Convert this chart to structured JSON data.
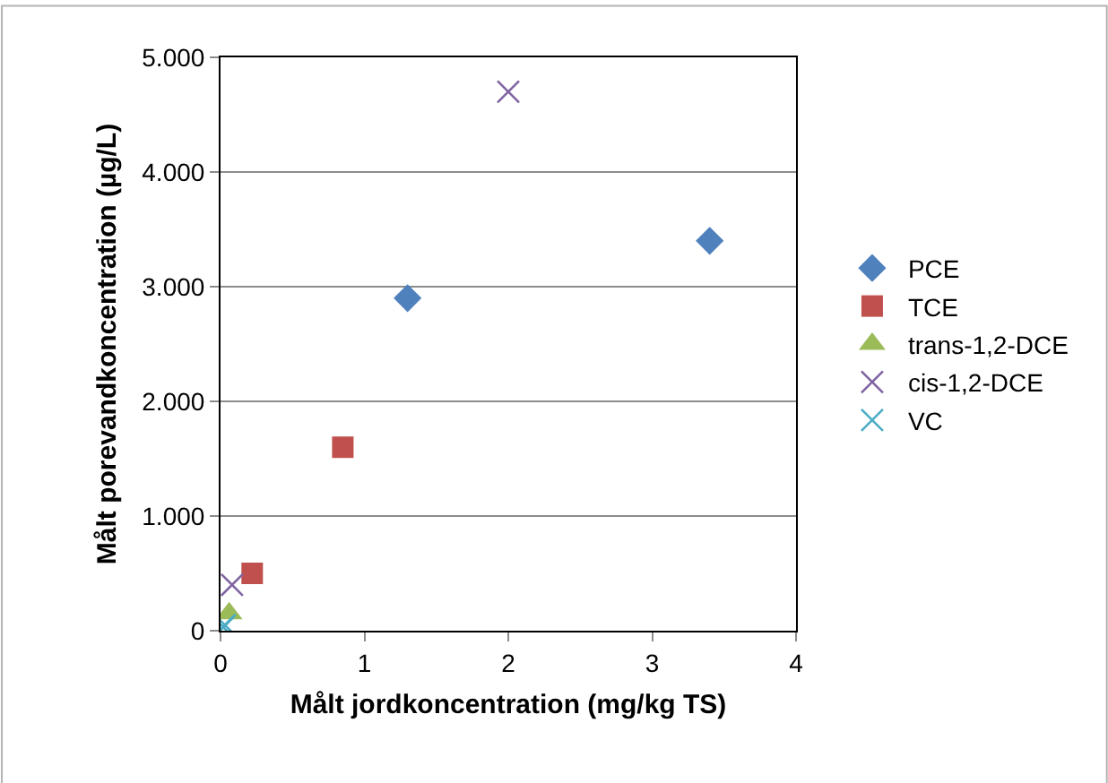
{
  "chart_data": {
    "type": "scatter",
    "xlabel": "Målt jordkoncentration (mg/kg TS)",
    "ylabel": "Målt porevandkoncentration (µg/L)",
    "xlim": [
      0,
      4
    ],
    "xticks": [
      0,
      1,
      2,
      3,
      4
    ],
    "ylim": [
      0,
      5000
    ],
    "yticks": [
      0,
      {
        "value": 1000,
        "label": "1.000"
      },
      {
        "value": 2000,
        "label": "2.000"
      },
      {
        "value": 3000,
        "label": "3.000"
      },
      {
        "value": 4000,
        "label": "4.000"
      },
      {
        "value": 5000,
        "label": "5.000"
      }
    ],
    "grid": "y",
    "legend": "right",
    "series": [
      {
        "name": "PCE",
        "color": "#4f81bd",
        "marker": "diamond",
        "x": [
          1.3,
          3.4
        ],
        "values": [
          2900,
          3400
        ]
      },
      {
        "name": "TCE",
        "color": "#c0504d",
        "marker": "square",
        "x": [
          0.85,
          0.22
        ],
        "values": [
          1600,
          500
        ]
      },
      {
        "name": "trans-1,2-DCE",
        "color": "#9bbb59",
        "marker": "triangle",
        "x": [
          0.06
        ],
        "values": [
          150
        ]
      },
      {
        "name": "cis-1,2-DCE",
        "color": "#8064a2",
        "marker": "cross",
        "x": [
          2.0,
          0.08
        ],
        "values": [
          4700,
          400
        ]
      },
      {
        "name": "VC",
        "color": "#4bacc6",
        "marker": "cross",
        "x": [
          0.02,
          0.03
        ],
        "values": [
          30,
          50
        ]
      }
    ]
  }
}
